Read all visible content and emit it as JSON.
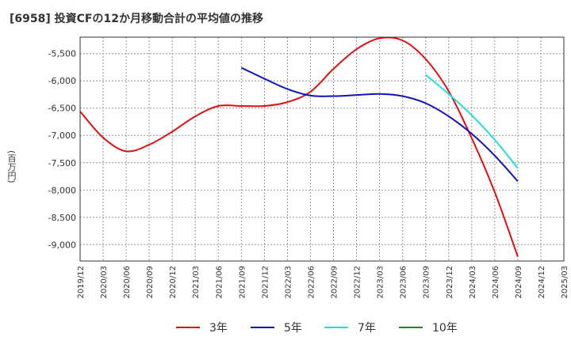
{
  "chart_data": {
    "type": "line",
    "title": "[6958]  投資CFの12か月移動合計の平均値の推移",
    "ylabel": "(百万円)",
    "xlabel": "",
    "x_ticks": [
      "2019/12",
      "2020/03",
      "2020/06",
      "2020/09",
      "2020/12",
      "2021/03",
      "2021/06",
      "2021/09",
      "2021/12",
      "2022/03",
      "2022/06",
      "2022/09",
      "2022/12",
      "2023/03",
      "2023/06",
      "2023/09",
      "2023/12",
      "2024/03",
      "2024/06",
      "2024/09",
      "2024/12",
      "2025/03"
    ],
    "ylim": [
      -9300,
      -5200
    ],
    "y_ticks": [
      -5500,
      -6000,
      -6500,
      -7000,
      -7500,
      -8000,
      -8500,
      -9000
    ],
    "y_tick_labels": [
      "-5,500",
      "-6,000",
      "-6,500",
      "-7,000",
      "-7,500",
      "-8,000",
      "-8,500",
      "-9,000"
    ],
    "grid": true,
    "legend_position": "bottom",
    "series": [
      {
        "name": "3年",
        "color": "#dd1111",
        "points": [
          [
            "2019/12",
            -6560
          ],
          [
            "2020/03",
            -7040
          ],
          [
            "2020/06",
            -7290
          ],
          [
            "2020/09",
            -7170
          ],
          [
            "2020/12",
            -6930
          ],
          [
            "2021/03",
            -6650
          ],
          [
            "2021/06",
            -6460
          ],
          [
            "2021/09",
            -6460
          ],
          [
            "2021/12",
            -6460
          ],
          [
            "2022/03",
            -6390
          ],
          [
            "2022/06",
            -6200
          ],
          [
            "2022/09",
            -5780
          ],
          [
            "2022/12",
            -5420
          ],
          [
            "2023/03",
            -5220
          ],
          [
            "2023/06",
            -5260
          ],
          [
            "2023/09",
            -5600
          ],
          [
            "2023/12",
            -6190
          ],
          [
            "2024/03",
            -7050
          ],
          [
            "2024/06",
            -8040
          ],
          [
            "2024/09",
            -9220
          ]
        ]
      },
      {
        "name": "5年",
        "color": "#1111bb",
        "points": [
          [
            "2021/09",
            -5760
          ],
          [
            "2021/12",
            -5960
          ],
          [
            "2022/03",
            -6150
          ],
          [
            "2022/06",
            -6270
          ],
          [
            "2022/09",
            -6280
          ],
          [
            "2022/12",
            -6260
          ],
          [
            "2023/03",
            -6240
          ],
          [
            "2023/06",
            -6280
          ],
          [
            "2023/09",
            -6410
          ],
          [
            "2023/12",
            -6650
          ],
          [
            "2024/03",
            -6970
          ],
          [
            "2024/06",
            -7370
          ],
          [
            "2024/09",
            -7840
          ]
        ]
      },
      {
        "name": "7年",
        "color": "#22dddd",
        "points": [
          [
            "2023/09",
            -5890
          ],
          [
            "2023/12",
            -6240
          ],
          [
            "2024/03",
            -6630
          ],
          [
            "2024/06",
            -7080
          ],
          [
            "2024/09",
            -7600
          ]
        ]
      },
      {
        "name": "10年",
        "color": "#228822",
        "points": []
      }
    ]
  }
}
